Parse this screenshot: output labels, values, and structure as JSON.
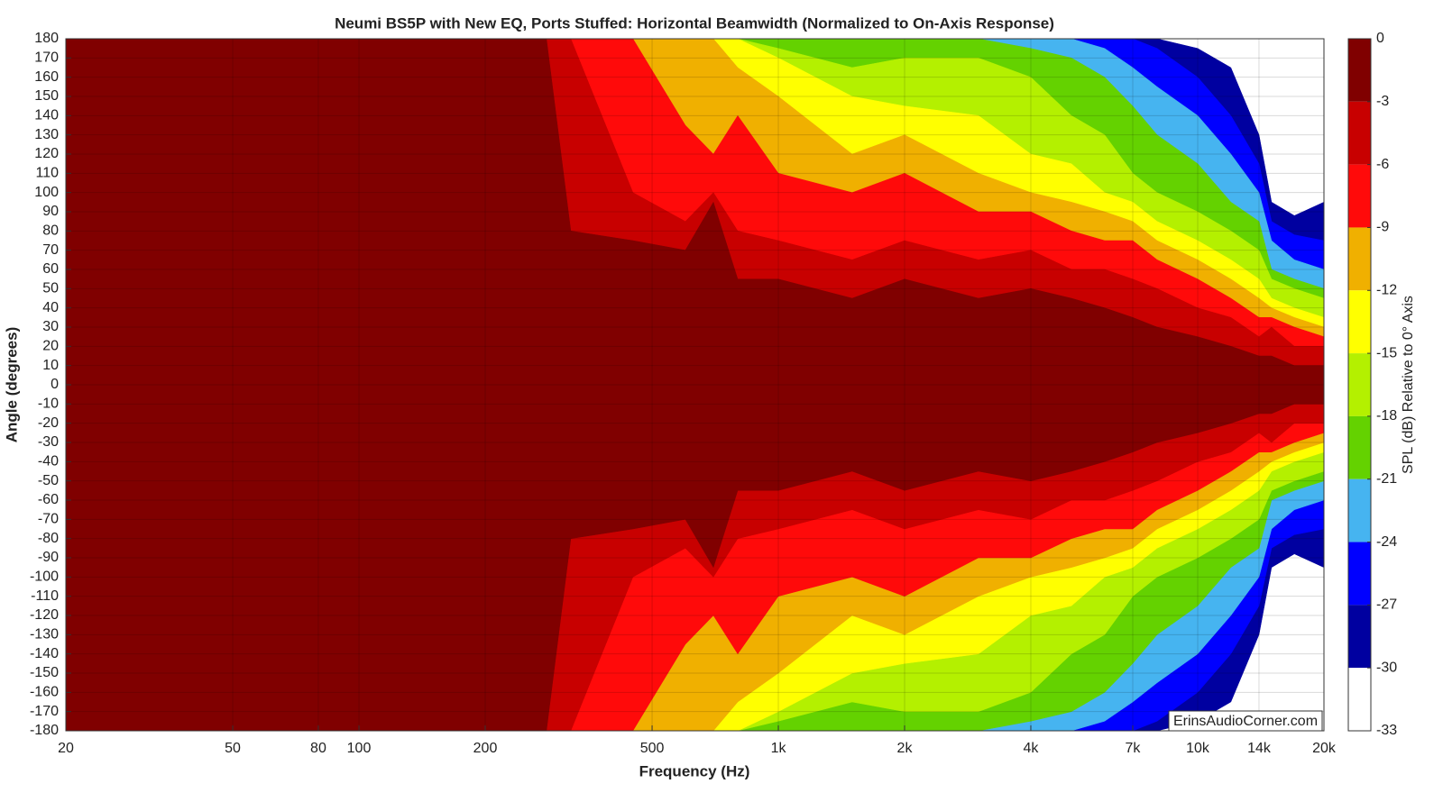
{
  "chart_data": {
    "type": "contour",
    "title": "Neumi BS5P with New EQ, Ports Stuffed: Horizontal Beamwidth (Normalized to On-Axis Response)",
    "xlabel": "Frequency (Hz)",
    "ylabel": "Angle (degrees)",
    "colorbar_label": "SPL (dB) Relative to 0° Axis",
    "watermark": "ErinsAudioCorner.com",
    "xscale": "log",
    "grid": true,
    "xlim": [
      20,
      20000
    ],
    "xticks": [
      20,
      50,
      80,
      100,
      200,
      500,
      {
        "value": 1000,
        "label": "1k"
      },
      {
        "value": 2000,
        "label": "2k"
      },
      {
        "value": 4000,
        "label": "4k"
      },
      {
        "value": 7000,
        "label": "7k"
      },
      {
        "value": 10000,
        "label": "10k"
      },
      {
        "value": 14000,
        "label": "14k"
      },
      {
        "value": 20000,
        "label": "20k"
      }
    ],
    "ylim": [
      -180,
      180
    ],
    "yticks": [
      -180,
      -170,
      -160,
      -150,
      -140,
      -130,
      -120,
      -110,
      -100,
      -90,
      -80,
      -70,
      -60,
      -50,
      -40,
      -30,
      -20,
      -10,
      0,
      10,
      20,
      30,
      40,
      50,
      60,
      70,
      80,
      90,
      100,
      110,
      120,
      130,
      140,
      150,
      160,
      170,
      180
    ],
    "clim": [
      -33,
      0
    ],
    "cticks": [
      0,
      -3,
      -6,
      -9,
      -12,
      -15,
      -18,
      -21,
      -24,
      -27,
      -30,
      -33
    ],
    "colors": [
      "#800000",
      "#c80000",
      "#ff0a0a",
      "#f0b000",
      "#ffff00",
      "#b4f000",
      "#64d200",
      "#46b4f0",
      "#0000ff",
      "#0000a0",
      "#ffffff"
    ],
    "x": [
      20,
      280,
      320,
      450,
      600,
      700,
      800,
      1000,
      1500,
      2000,
      3000,
      4000,
      5000,
      6000,
      7000,
      8000,
      10000,
      12000,
      14000,
      15000,
      17000,
      20000
    ],
    "contours": [
      {
        "level": -3,
        "values": [
          180,
          180,
          80,
          75,
          70,
          95,
          55,
          55,
          45,
          55,
          45,
          50,
          45,
          40,
          35,
          30,
          25,
          20,
          15,
          15,
          10,
          10
        ]
      },
      {
        "level": -6,
        "values": [
          180,
          180,
          180,
          100,
          85,
          100,
          80,
          75,
          65,
          75,
          65,
          70,
          60,
          60,
          55,
          50,
          40,
          35,
          25,
          30,
          20,
          20
        ]
      },
      {
        "level": -9,
        "values": [
          180,
          180,
          180,
          180,
          135,
          120,
          140,
          110,
          100,
          110,
          90,
          90,
          80,
          75,
          75,
          65,
          55,
          45,
          35,
          35,
          30,
          25
        ]
      },
      {
        "level": -12,
        "values": [
          180,
          180,
          180,
          180,
          180,
          180,
          165,
          150,
          120,
          130,
          110,
          100,
          95,
          90,
          85,
          75,
          65,
          55,
          45,
          40,
          35,
          30
        ]
      },
      {
        "level": -15,
        "values": [
          180,
          180,
          180,
          180,
          180,
          180,
          180,
          170,
          150,
          145,
          140,
          120,
          115,
          100,
          95,
          85,
          75,
          65,
          55,
          45,
          40,
          35
        ]
      },
      {
        "level": -18,
        "values": [
          180,
          180,
          180,
          180,
          180,
          180,
          180,
          175,
          165,
          170,
          170,
          160,
          140,
          130,
          110,
          100,
          90,
          80,
          70,
          55,
          50,
          45
        ]
      },
      {
        "level": -21,
        "values": [
          180,
          180,
          180,
          180,
          180,
          180,
          180,
          180,
          180,
          180,
          180,
          175,
          170,
          160,
          145,
          130,
          115,
          95,
          85,
          60,
          55,
          50
        ]
      },
      {
        "level": -24,
        "values": [
          180,
          180,
          180,
          180,
          180,
          180,
          180,
          180,
          180,
          180,
          180,
          180,
          180,
          175,
          165,
          155,
          140,
          120,
          100,
          75,
          65,
          60
        ]
      },
      {
        "level": -27,
        "values": [
          180,
          180,
          180,
          180,
          180,
          180,
          180,
          180,
          180,
          180,
          180,
          180,
          180,
          180,
          180,
          175,
          160,
          140,
          115,
          85,
          78,
          75
        ]
      },
      {
        "level": -30,
        "values": [
          180,
          180,
          180,
          180,
          180,
          180,
          180,
          180,
          180,
          180,
          180,
          180,
          180,
          180,
          180,
          180,
          175,
          165,
          130,
          95,
          88,
          95
        ]
      }
    ]
  }
}
